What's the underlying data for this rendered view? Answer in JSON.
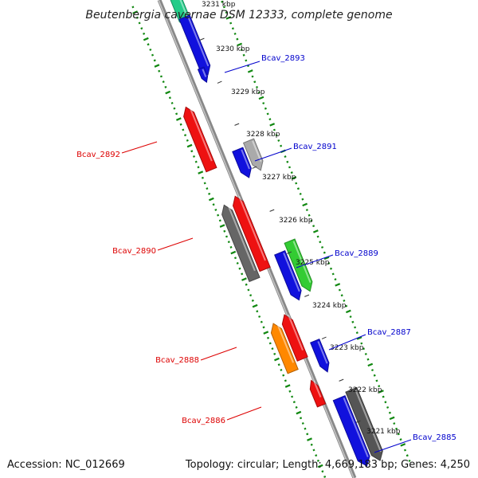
{
  "title": "Beutenbergia cavernae DSM 12333, complete genome",
  "accession": "Accession: NC_012669",
  "topology": "Topology: circular; Length: 4,669,183 bp; Genes: 4,250",
  "colors": {
    "label_forward": "#0000cc",
    "label_reverse": "#dd0000",
    "gc_ticks": "#118811",
    "backbone": "#888888"
  },
  "kbp_ticks": [
    "3231 kbp",
    "3230 kbp",
    "3229 kbp",
    "3228 kbp",
    "3227 kbp",
    "3226 kbp",
    "3225 kbp",
    "3224 kbp",
    "3223 kbp",
    "3222 kbp",
    "3221 kbp"
  ],
  "gene_labels": [
    {
      "name": "Bcav_2893",
      "strand": "forward"
    },
    {
      "name": "Bcav_2892",
      "strand": "reverse"
    },
    {
      "name": "Bcav_2891",
      "strand": "forward"
    },
    {
      "name": "Bcav_2890",
      "strand": "reverse"
    },
    {
      "name": "Bcav_2889",
      "strand": "forward"
    },
    {
      "name": "Bcav_2888",
      "strand": "reverse"
    },
    {
      "name": "Bcav_2887",
      "strand": "forward"
    },
    {
      "name": "Bcav_2886",
      "strand": "reverse"
    },
    {
      "name": "Bcav_2885",
      "strand": "forward"
    }
  ],
  "gene_features": [
    {
      "color": "#22cc88",
      "strand": "forward"
    },
    {
      "color": "#1111dd",
      "strand": "forward"
    },
    {
      "color": "#1111dd",
      "strand": "forward"
    },
    {
      "color": "#ee1111",
      "strand": "reverse"
    },
    {
      "color": "#1111dd",
      "strand": "forward"
    },
    {
      "color": "#aaaaaa",
      "strand": "forward"
    },
    {
      "color": "#666666",
      "strand": "reverse"
    },
    {
      "color": "#ee1111",
      "strand": "reverse"
    },
    {
      "color": "#1111dd",
      "strand": "forward"
    },
    {
      "color": "#33cc33",
      "strand": "forward"
    },
    {
      "color": "#ff8800",
      "strand": "reverse"
    },
    {
      "color": "#ee1111",
      "strand": "reverse"
    },
    {
      "color": "#1111dd",
      "strand": "forward"
    },
    {
      "color": "#ee1111",
      "strand": "reverse"
    },
    {
      "color": "#1111dd",
      "strand": "forward"
    },
    {
      "color": "#555555",
      "strand": "forward"
    }
  ]
}
